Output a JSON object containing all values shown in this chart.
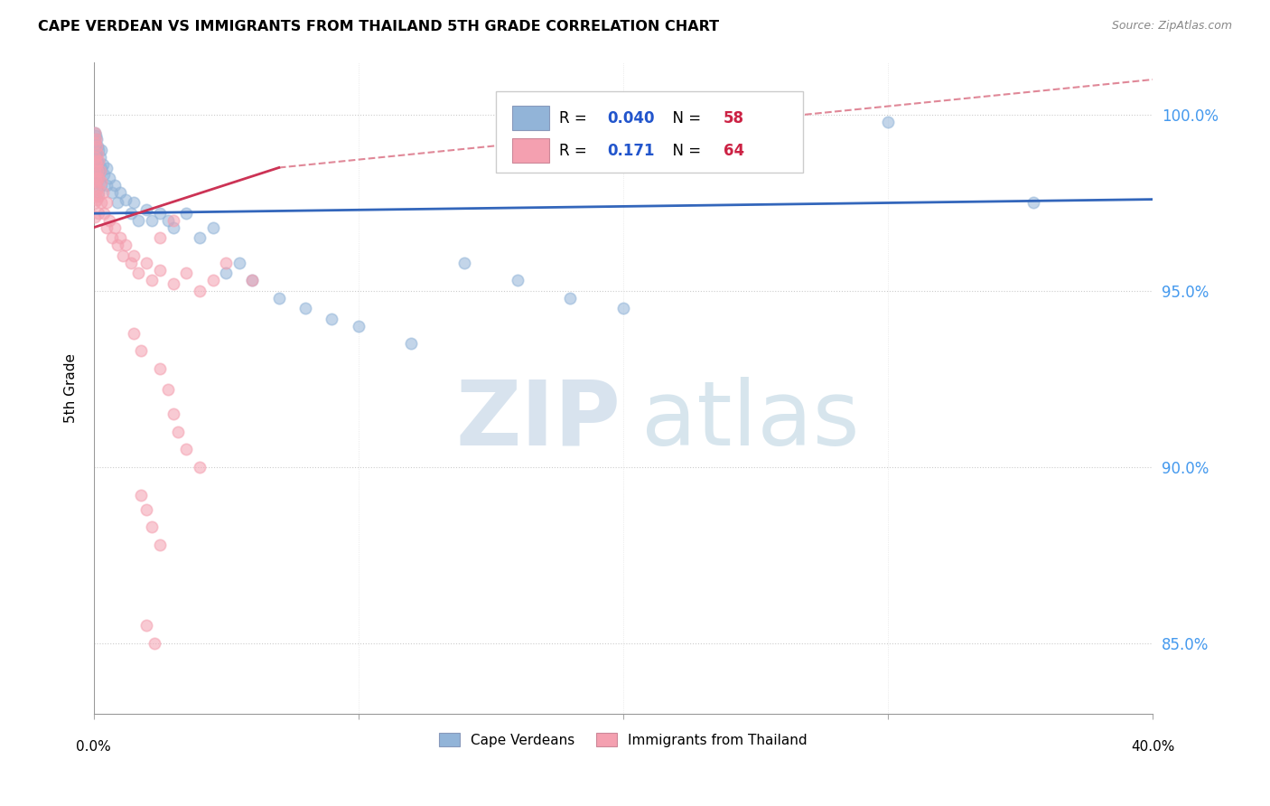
{
  "title": "CAPE VERDEAN VS IMMIGRANTS FROM THAILAND 5TH GRADE CORRELATION CHART",
  "source": "Source: ZipAtlas.com",
  "ylabel": "5th Grade",
  "xmin": 0.0,
  "xmax": 40.0,
  "ymin": 83.0,
  "ymax": 101.5,
  "yticks": [
    85.0,
    90.0,
    95.0,
    100.0
  ],
  "ytick_labels": [
    "85.0%",
    "90.0%",
    "95.0%",
    "100.0%"
  ],
  "legend_r_blue": "0.040",
  "legend_n_blue": "58",
  "legend_r_pink": "0.171",
  "legend_n_pink": "64",
  "blue_color": "#92b4d8",
  "pink_color": "#f4a0b0",
  "trendline_blue_color": "#3366bb",
  "trendline_pink_color": "#cc3355",
  "trendline_dash_color": "#e08898",
  "blue_points": [
    [
      0.05,
      99.5
    ],
    [
      0.05,
      99.2
    ],
    [
      0.05,
      98.8
    ],
    [
      0.05,
      98.5
    ],
    [
      0.08,
      99.4
    ],
    [
      0.08,
      99.0
    ],
    [
      0.08,
      98.6
    ],
    [
      0.1,
      99.3
    ],
    [
      0.1,
      98.9
    ],
    [
      0.1,
      98.5
    ],
    [
      0.1,
      98.1
    ],
    [
      0.15,
      99.1
    ],
    [
      0.15,
      98.7
    ],
    [
      0.15,
      98.3
    ],
    [
      0.2,
      99.0
    ],
    [
      0.2,
      98.6
    ],
    [
      0.2,
      98.2
    ],
    [
      0.2,
      97.8
    ],
    [
      0.25,
      98.8
    ],
    [
      0.25,
      98.4
    ],
    [
      0.3,
      99.0
    ],
    [
      0.3,
      98.5
    ],
    [
      0.3,
      98.0
    ],
    [
      0.35,
      98.6
    ],
    [
      0.4,
      98.3
    ],
    [
      0.5,
      98.5
    ],
    [
      0.5,
      98.0
    ],
    [
      0.6,
      98.2
    ],
    [
      0.7,
      97.8
    ],
    [
      0.8,
      98.0
    ],
    [
      0.9,
      97.5
    ],
    [
      1.0,
      97.8
    ],
    [
      1.2,
      97.6
    ],
    [
      1.4,
      97.2
    ],
    [
      1.5,
      97.5
    ],
    [
      1.7,
      97.0
    ],
    [
      2.0,
      97.3
    ],
    [
      2.2,
      97.0
    ],
    [
      2.5,
      97.2
    ],
    [
      2.8,
      97.0
    ],
    [
      3.0,
      96.8
    ],
    [
      3.5,
      97.2
    ],
    [
      4.0,
      96.5
    ],
    [
      4.5,
      96.8
    ],
    [
      5.0,
      95.5
    ],
    [
      5.5,
      95.8
    ],
    [
      6.0,
      95.3
    ],
    [
      7.0,
      94.8
    ],
    [
      8.0,
      94.5
    ],
    [
      9.0,
      94.2
    ],
    [
      10.0,
      94.0
    ],
    [
      12.0,
      93.5
    ],
    [
      14.0,
      95.8
    ],
    [
      16.0,
      95.3
    ],
    [
      18.0,
      94.8
    ],
    [
      20.0,
      94.5
    ],
    [
      30.0,
      99.8
    ],
    [
      35.5,
      97.5
    ]
  ],
  "pink_points": [
    [
      0.05,
      99.5
    ],
    [
      0.05,
      99.2
    ],
    [
      0.05,
      98.8
    ],
    [
      0.05,
      98.4
    ],
    [
      0.05,
      98.0
    ],
    [
      0.05,
      97.5
    ],
    [
      0.05,
      97.1
    ],
    [
      0.08,
      99.3
    ],
    [
      0.08,
      98.7
    ],
    [
      0.08,
      98.2
    ],
    [
      0.08,
      97.7
    ],
    [
      0.1,
      99.1
    ],
    [
      0.1,
      98.6
    ],
    [
      0.1,
      98.1
    ],
    [
      0.1,
      97.6
    ],
    [
      0.15,
      98.9
    ],
    [
      0.15,
      98.4
    ],
    [
      0.15,
      97.9
    ],
    [
      0.2,
      98.7
    ],
    [
      0.2,
      98.2
    ],
    [
      0.2,
      97.7
    ],
    [
      0.2,
      97.2
    ],
    [
      0.25,
      98.4
    ],
    [
      0.3,
      98.1
    ],
    [
      0.3,
      97.5
    ],
    [
      0.35,
      97.8
    ],
    [
      0.4,
      97.2
    ],
    [
      0.5,
      97.5
    ],
    [
      0.5,
      96.8
    ],
    [
      0.6,
      97.0
    ],
    [
      0.7,
      96.5
    ],
    [
      0.8,
      96.8
    ],
    [
      0.9,
      96.3
    ],
    [
      1.0,
      96.5
    ],
    [
      1.1,
      96.0
    ],
    [
      1.2,
      96.3
    ],
    [
      1.4,
      95.8
    ],
    [
      1.5,
      96.0
    ],
    [
      1.7,
      95.5
    ],
    [
      2.0,
      95.8
    ],
    [
      2.2,
      95.3
    ],
    [
      2.5,
      95.6
    ],
    [
      3.0,
      95.2
    ],
    [
      3.5,
      95.5
    ],
    [
      4.0,
      95.0
    ],
    [
      4.5,
      95.3
    ],
    [
      5.0,
      95.8
    ],
    [
      6.0,
      95.3
    ],
    [
      1.5,
      93.8
    ],
    [
      1.8,
      93.3
    ],
    [
      2.5,
      92.8
    ],
    [
      2.8,
      92.2
    ],
    [
      3.0,
      91.5
    ],
    [
      3.2,
      91.0
    ],
    [
      3.5,
      90.5
    ],
    [
      4.0,
      90.0
    ],
    [
      1.8,
      89.2
    ],
    [
      2.0,
      88.8
    ],
    [
      2.2,
      88.3
    ],
    [
      2.5,
      87.8
    ],
    [
      2.0,
      85.5
    ],
    [
      2.3,
      85.0
    ],
    [
      2.5,
      96.5
    ],
    [
      3.0,
      97.0
    ]
  ]
}
